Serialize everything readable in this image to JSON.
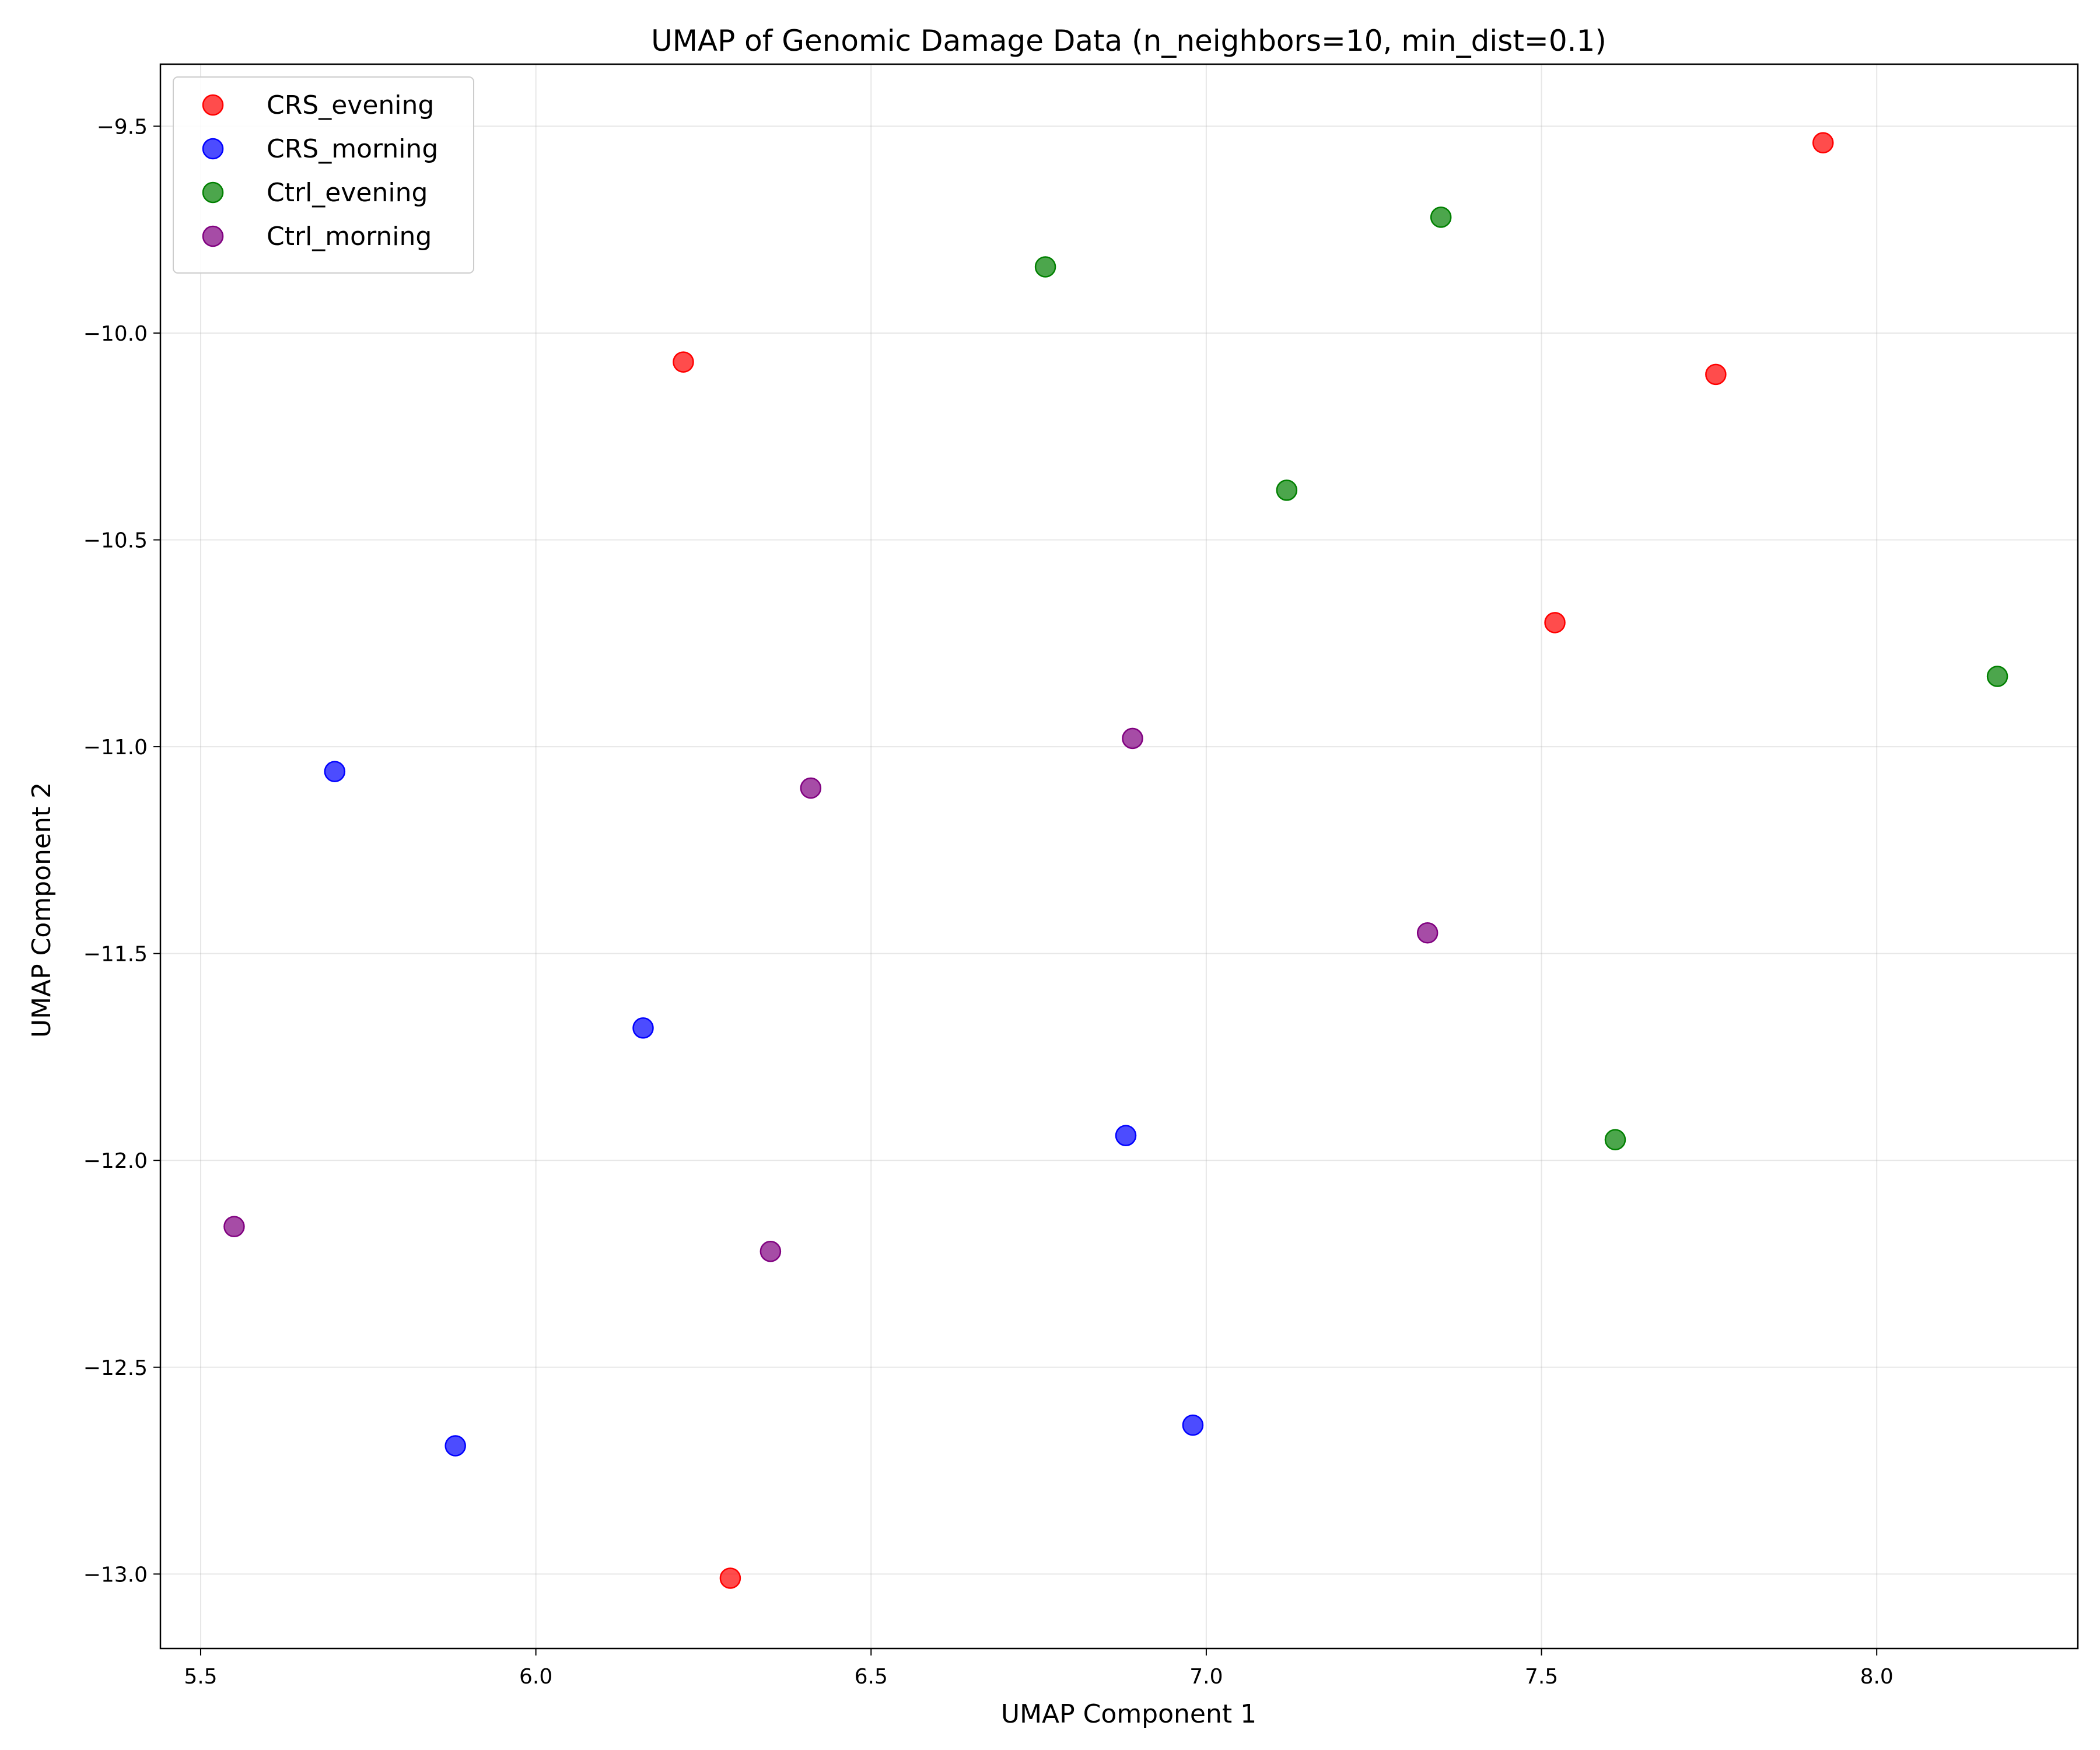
{
  "chart_data": {
    "type": "scatter",
    "title": "UMAP of Genomic Damage Data (n_neighbors=10, min_dist=0.1)",
    "xlabel": "UMAP Component 1",
    "ylabel": "UMAP Component 2",
    "xlim": [
      5.44,
      8.3
    ],
    "ylim": [
      -13.18,
      -9.35
    ],
    "xticks": [
      5.5,
      6.0,
      6.5,
      7.0,
      7.5,
      8.0
    ],
    "xtick_labels": [
      "5.5",
      "6.0",
      "6.5",
      "7.0",
      "7.5",
      "8.0"
    ],
    "yticks": [
      -9.5,
      -10.0,
      -10.5,
      -11.0,
      -11.5,
      -12.0,
      -12.5,
      -13.0
    ],
    "ytick_labels": [
      "−9.5",
      "−10.0",
      "−10.5",
      "−11.0",
      "−11.5",
      "−12.0",
      "−12.5",
      "−13.0"
    ],
    "grid": true,
    "legend_position": "top-left",
    "series": [
      {
        "name": "CRS_evening",
        "color": "#ff0000",
        "points": [
          {
            "x": 6.22,
            "y": -10.07
          },
          {
            "x": 7.92,
            "y": -9.54
          },
          {
            "x": 7.76,
            "y": -10.1
          },
          {
            "x": 7.52,
            "y": -10.7
          },
          {
            "x": 6.29,
            "y": -13.01
          }
        ]
      },
      {
        "name": "CRS_morning",
        "color": "#0000ff",
        "points": [
          {
            "x": 5.7,
            "y": -11.06
          },
          {
            "x": 6.16,
            "y": -11.68
          },
          {
            "x": 6.88,
            "y": -11.94
          },
          {
            "x": 5.88,
            "y": -12.69
          },
          {
            "x": 6.98,
            "y": -12.64
          }
        ]
      },
      {
        "name": "Ctrl_evening",
        "color": "#008000",
        "points": [
          {
            "x": 6.76,
            "y": -9.84
          },
          {
            "x": 7.35,
            "y": -9.72
          },
          {
            "x": 7.12,
            "y": -10.38
          },
          {
            "x": 8.18,
            "y": -10.83
          },
          {
            "x": 7.61,
            "y": -11.95
          }
        ]
      },
      {
        "name": "Ctrl_morning",
        "color": "#800080",
        "points": [
          {
            "x": 6.89,
            "y": -10.98
          },
          {
            "x": 6.41,
            "y": -11.1
          },
          {
            "x": 7.33,
            "y": -11.45
          },
          {
            "x": 5.55,
            "y": -12.16
          },
          {
            "x": 6.35,
            "y": -12.22
          }
        ]
      }
    ]
  }
}
